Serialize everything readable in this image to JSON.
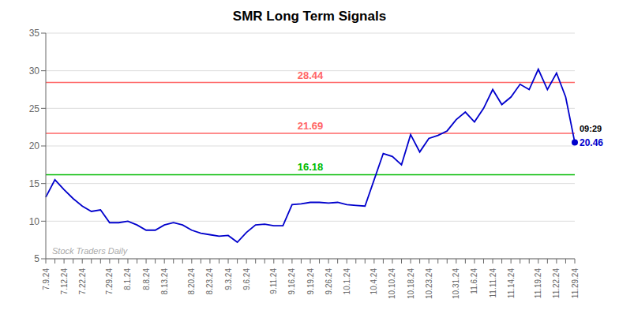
{
  "chart_data": {
    "type": "line",
    "title": "SMR Long Term Signals",
    "categories": [
      "7.9.24",
      null,
      "7.12.24",
      null,
      "7.22.24",
      null,
      null,
      "7.29.24",
      null,
      "8.1.24",
      null,
      "8.8.24",
      null,
      "8.13.24",
      null,
      null,
      "8.20.24",
      null,
      "8.23.24",
      null,
      "9.3.24",
      null,
      "9.6.24",
      null,
      null,
      "9.11.24",
      null,
      "9.16.24",
      null,
      "9.19.24",
      null,
      "9.26.24",
      null,
      "10.1.24",
      null,
      null,
      "10.4.24",
      null,
      "10.10.24",
      null,
      "10.18.24",
      null,
      "10.23.24",
      null,
      null,
      "10.31.24",
      null,
      "11.6.24",
      null,
      "11.11.24",
      null,
      "11.14.24",
      null,
      null,
      "11.19.24",
      null,
      "11.22.24",
      null,
      "11.29.24"
    ],
    "values": [
      13.2,
      15.5,
      14.2,
      13.0,
      12.0,
      11.3,
      11.5,
      9.8,
      9.8,
      10.0,
      9.5,
      8.8,
      8.8,
      9.5,
      9.8,
      9.5,
      8.8,
      8.4,
      8.2,
      8.0,
      8.1,
      7.2,
      8.5,
      9.5,
      9.6,
      9.4,
      9.4,
      12.2,
      12.3,
      12.5,
      12.5,
      12.4,
      12.5,
      12.2,
      12.1,
      12.0,
      15.5,
      19.0,
      18.6,
      17.5,
      21.5,
      19.2,
      21.0,
      21.4,
      22.0,
      23.5,
      24.5,
      23.2,
      25.0,
      27.5,
      25.5,
      26.5,
      28.2,
      27.5,
      30.2,
      27.5,
      29.7,
      26.5,
      20.46
    ],
    "color": "#0000cc",
    "ylim": [
      5,
      35
    ],
    "yticks": [
      5,
      10,
      15,
      20,
      25,
      30,
      35
    ],
    "grid": true,
    "hlines": [
      {
        "value": 16.18,
        "label": "16.18",
        "color": "#00bb00"
      },
      {
        "value": 21.69,
        "label": "21.69",
        "color": "#ff6666"
      },
      {
        "value": 28.44,
        "label": "28.44",
        "color": "#ff6666"
      }
    ],
    "annotations": [
      "09:29",
      "20.46"
    ],
    "watermark": "Stock Traders Daily"
  }
}
